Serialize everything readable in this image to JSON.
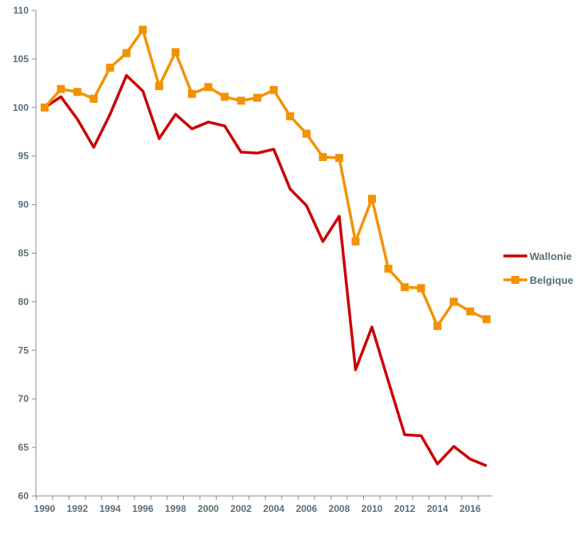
{
  "chart_data": {
    "type": "line",
    "title": "",
    "xlabel": "",
    "ylabel": "",
    "x": [
      1990,
      1991,
      1992,
      1993,
      1994,
      1995,
      1996,
      1997,
      1998,
      1999,
      2000,
      2001,
      2002,
      2003,
      2004,
      2005,
      2006,
      2007,
      2008,
      2009,
      2010,
      2011,
      2012,
      2013,
      2014,
      2015,
      2016,
      2017
    ],
    "xlim": [
      1990,
      2017
    ],
    "ylim": [
      60,
      110
    ],
    "yticks": [
      60,
      65,
      70,
      75,
      80,
      85,
      90,
      95,
      100,
      105,
      110
    ],
    "xtick_labels": [
      "1990",
      "1992",
      "1994",
      "1996",
      "1998",
      "2000",
      "2002",
      "2004",
      "2006",
      "2008",
      "2010",
      "2012",
      "2014",
      "2016"
    ],
    "legend_position": "right",
    "grid": false,
    "series": [
      {
        "name": "Wallonie",
        "color": "#cc0000",
        "marker": "none",
        "values": [
          100.0,
          101.1,
          98.8,
          95.9,
          99.3,
          103.3,
          101.7,
          96.8,
          99.3,
          97.8,
          98.5,
          98.1,
          95.4,
          95.3,
          95.7,
          91.6,
          89.9,
          86.2,
          88.8,
          73.0,
          77.4,
          71.8,
          66.3,
          66.2,
          63.3,
          65.1,
          63.8,
          63.1
        ]
      },
      {
        "name": "Belgique",
        "color": "#f39200",
        "marker": "square",
        "values": [
          100.0,
          101.9,
          101.6,
          100.9,
          104.1,
          105.6,
          108.0,
          102.2,
          105.7,
          101.4,
          102.1,
          101.1,
          100.7,
          101.0,
          101.8,
          99.1,
          97.3,
          94.9,
          94.8,
          86.2,
          90.6,
          83.4,
          81.5,
          81.4,
          77.5,
          80.0,
          79.0,
          78.2
        ]
      }
    ]
  }
}
